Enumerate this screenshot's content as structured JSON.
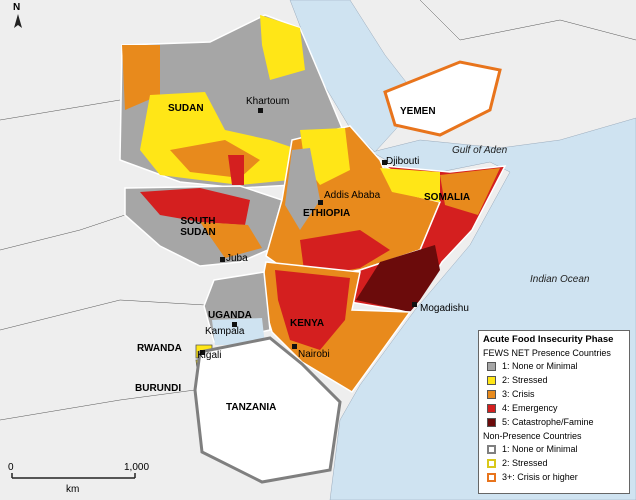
{
  "north_label": "N",
  "countries": [
    {
      "label": "SUDAN"
    },
    {
      "label": "SOUTH SUDAN"
    },
    {
      "label": "ETHIOPIA"
    },
    {
      "label": "SOMALIA"
    },
    {
      "label": "YEMEN"
    },
    {
      "label": "UGANDA"
    },
    {
      "label": "KENYA"
    },
    {
      "label": "RWANDA"
    },
    {
      "label": "BURUNDI"
    },
    {
      "label": "TANZANIA"
    }
  ],
  "cities": [
    "Khartoum",
    "Djibouti",
    "Addis Ababa",
    "Juba",
    "Mogadishu",
    "Kampala",
    "Kigali",
    "Nairobi"
  ],
  "water": [
    "Gulf of Aden",
    "Indian Ocean"
  ],
  "legend": {
    "title": "Acute Food Insecurity Phase",
    "presence_heading": "FEWS NET Presence Countries",
    "presence_items": [
      {
        "label": "1: None or Minimal",
        "color": "#a6a6a6"
      },
      {
        "label": "2: Stressed",
        "color": "#ffe617"
      },
      {
        "label": "3: Crisis",
        "color": "#e88a1c"
      },
      {
        "label": "4: Emergency",
        "color": "#d41f1f"
      },
      {
        "label": "5: Catastrophe/Famine",
        "color": "#6b0b0b"
      }
    ],
    "non_presence_heading": "Non-Presence Countries",
    "non_presence_items": [
      {
        "label": "1: None or Minimal",
        "color": "#7f7f7f"
      },
      {
        "label": "2: Stressed",
        "color": "#d9c81a"
      },
      {
        "label": "3+: Crisis or higher",
        "color": "#e8741c"
      }
    ]
  },
  "scale": {
    "labels": [
      "0",
      "1,000"
    ],
    "unit": "km"
  }
}
